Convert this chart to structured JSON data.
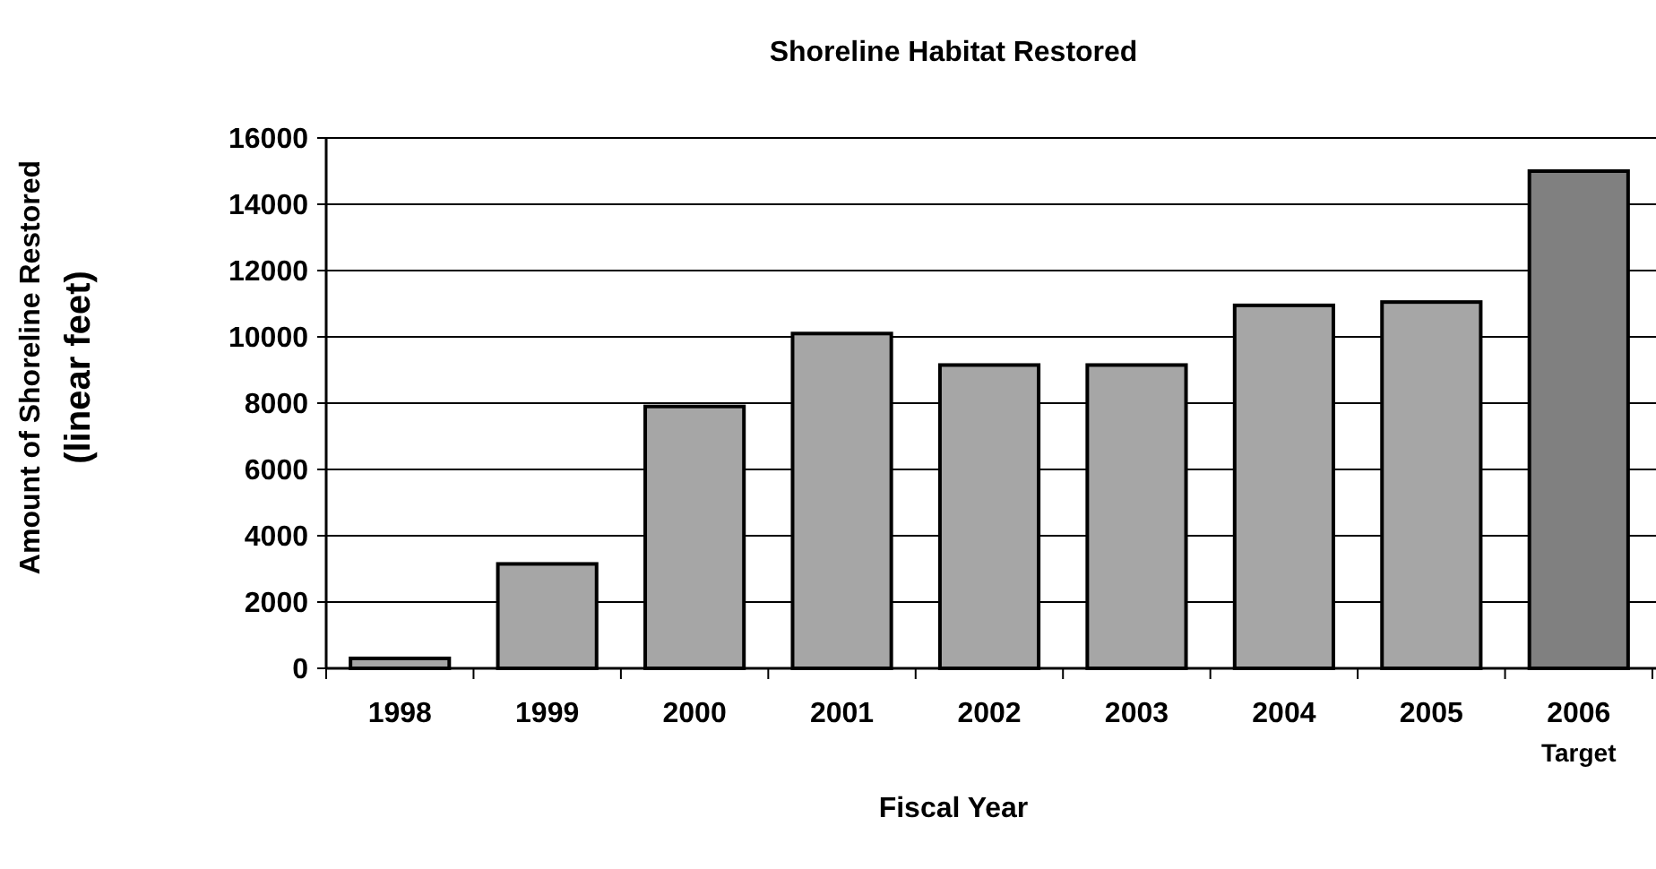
{
  "chart_data": {
    "type": "bar",
    "title": "Shoreline Habitat Restored",
    "xlabel": "Fiscal Year",
    "ylabel": "Amount of Shoreline Restored\n(linear feet)",
    "categories": [
      "1998",
      "1999",
      "2000",
      "2001",
      "2002",
      "2003",
      "2004",
      "2005",
      "2006\nTarget"
    ],
    "values": [
      300,
      3150,
      7900,
      10100,
      9150,
      9150,
      10950,
      11050,
      15000
    ],
    "colors": [
      "#a6a6a6",
      "#a6a6a6",
      "#a6a6a6",
      "#a6a6a6",
      "#a6a6a6",
      "#a6a6a6",
      "#a6a6a6",
      "#a6a6a6",
      "#808080"
    ],
    "ylim": [
      0,
      16000
    ],
    "yticks": [
      0,
      2000,
      4000,
      6000,
      8000,
      10000,
      12000,
      14000,
      16000
    ],
    "grid": "y"
  }
}
